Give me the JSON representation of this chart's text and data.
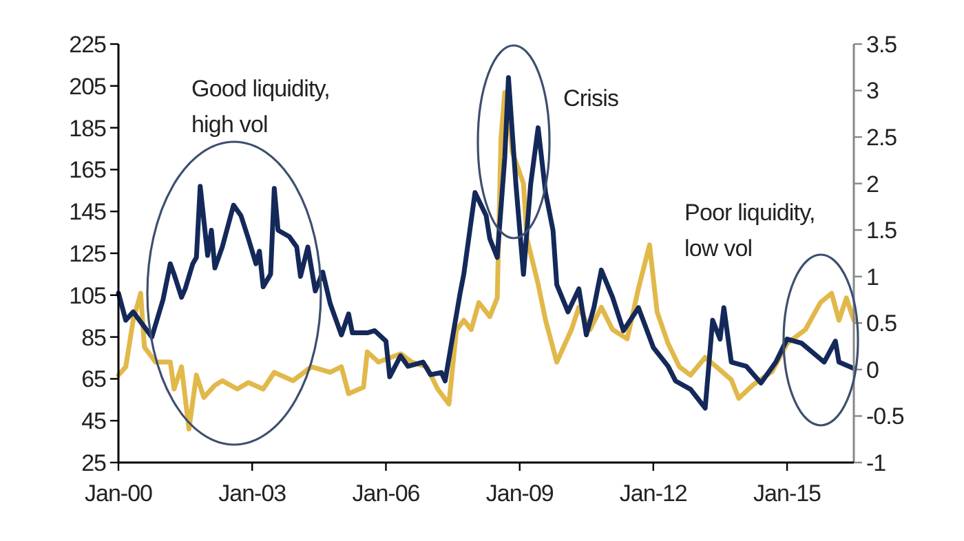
{
  "chart_data": {
    "type": "line",
    "xlim": [
      "2000-01",
      "2016-07"
    ],
    "xticks": [
      {
        "value": "2000-01",
        "label": "Jan-00"
      },
      {
        "value": "2003-01",
        "label": "Jan-03"
      },
      {
        "value": "2006-01",
        "label": "Jan-06"
      },
      {
        "value": "2009-01",
        "label": "Jan-09"
      },
      {
        "value": "2012-01",
        "label": "Jan-12"
      },
      {
        "value": "2015-01",
        "label": "Jan-15"
      }
    ],
    "ylim": [
      25,
      225
    ],
    "yticks": [
      25,
      45,
      65,
      85,
      105,
      125,
      145,
      165,
      185,
      205,
      225
    ],
    "y2lim": [
      -1,
      3.5
    ],
    "y2ticks": [
      -1,
      -0.5,
      0,
      0.5,
      1,
      1.5,
      2,
      2.5,
      3,
      3.5
    ],
    "grid": false,
    "annotations": [
      "Good liquidity,\nhigh vol",
      "Crisis",
      "Poor liquidity,\nlow vol"
    ],
    "series": [
      {
        "color": "#14295a",
        "x": [
          "2000-01",
          "2000-03",
          "2000-05",
          "2000-10",
          "2001-01",
          "2001-03",
          "2001-04",
          "2001-06",
          "2001-07",
          "2001-09",
          "2001-10",
          "2001-11",
          "2002-01",
          "2002-02",
          "2002-03",
          "2002-05",
          "2002-08",
          "2002-10",
          "2002-12",
          "2003-02",
          "2003-03",
          "2003-04",
          "2003-06",
          "2003-07",
          "2003-08",
          "2003-11",
          "2004-01",
          "2004-02",
          "2004-04",
          "2004-06",
          "2004-08",
          "2004-10",
          "2005-01",
          "2005-03",
          "2005-04",
          "2005-08",
          "2005-10",
          "2006-01",
          "2006-02",
          "2006-05",
          "2006-07",
          "2006-11",
          "2007-01",
          "2007-04",
          "2007-05",
          "2007-07",
          "2007-09",
          "2007-10",
          "2008-01",
          "2008-04",
          "2008-05",
          "2008-07",
          "2008-09",
          "2008-10",
          "2008-12",
          "2009-02",
          "2009-04",
          "2009-06",
          "2009-08",
          "2009-10",
          "2009-11",
          "2010-02",
          "2010-05",
          "2010-07",
          "2010-09",
          "2010-11",
          "2011-02",
          "2011-05",
          "2011-09",
          "2012-01",
          "2012-05",
          "2012-07",
          "2012-11",
          "2013-03",
          "2013-05",
          "2013-07",
          "2013-08",
          "2013-10",
          "2014-02",
          "2014-06",
          "2014-10",
          "2015-01",
          "2015-05",
          "2015-11",
          "2016-02",
          "2016-03",
          "2016-07"
        ],
        "values": [
          106,
          93,
          97,
          85,
          103,
          120,
          115,
          104,
          108,
          120,
          123,
          157,
          124,
          136,
          118,
          128,
          148,
          143,
          132,
          120,
          126,
          109,
          115,
          156,
          136,
          133,
          128,
          114,
          128,
          107,
          116,
          101,
          86,
          96,
          87,
          87,
          88,
          83,
          66,
          76,
          71,
          73,
          67,
          68,
          64,
          85,
          106,
          115,
          154,
          143,
          132,
          123,
          171,
          209,
          158,
          115,
          158,
          185,
          154,
          136,
          110,
          97,
          108,
          86,
          99,
          117,
          104,
          88,
          99,
          80,
          71,
          64,
          60,
          51,
          93,
          84,
          99,
          73,
          71,
          63,
          73,
          84,
          82,
          73,
          83,
          73,
          70
        ]
      },
      {
        "color": "#e1b84a",
        "axis": "y2",
        "x": [
          "2000-01",
          "2000-03",
          "2000-05",
          "2000-07",
          "2000-08",
          "2000-11",
          "2001-03",
          "2001-04",
          "2001-06",
          "2001-08",
          "2001-10",
          "2001-12",
          "2002-03",
          "2002-05",
          "2002-09",
          "2002-12",
          "2003-04",
          "2003-07",
          "2003-12",
          "2004-05",
          "2004-10",
          "2005-01",
          "2005-03",
          "2005-07",
          "2005-08",
          "2005-11",
          "2006-05",
          "2006-08",
          "2006-12",
          "2007-03",
          "2007-06",
          "2007-08",
          "2007-10",
          "2007-12",
          "2008-02",
          "2008-05",
          "2008-07",
          "2008-08",
          "2008-09",
          "2008-10",
          "2008-11",
          "2009-02",
          "2009-03",
          "2009-06",
          "2009-08",
          "2009-11",
          "2010-03",
          "2010-05",
          "2010-08",
          "2010-11",
          "2011-02",
          "2011-06",
          "2011-09",
          "2011-12",
          "2012-02",
          "2012-05",
          "2012-08",
          "2012-11",
          "2013-03",
          "2013-06",
          "2013-10",
          "2013-12",
          "2014-04",
          "2014-09",
          "2015-01",
          "2015-06",
          "2015-10",
          "2016-01",
          "2016-03",
          "2016-05",
          "2016-07"
        ],
        "values": [
          -0.06,
          0.03,
          0.53,
          0.82,
          0.24,
          0.08,
          0.08,
          -0.21,
          0.03,
          -0.64,
          -0.06,
          -0.3,
          -0.17,
          -0.12,
          -0.21,
          -0.14,
          -0.21,
          -0.03,
          -0.12,
          0.03,
          -0.03,
          0.03,
          -0.26,
          -0.19,
          0.19,
          0.08,
          0.17,
          0.08,
          0.03,
          -0.21,
          -0.37,
          0.42,
          0.53,
          0.43,
          0.72,
          0.57,
          0.77,
          2.49,
          2.98,
          2.84,
          2.34,
          2.0,
          1.41,
          0.92,
          0.53,
          0.08,
          0.43,
          0.67,
          0.43,
          0.67,
          0.43,
          0.33,
          0.87,
          1.34,
          0.62,
          0.28,
          0.03,
          -0.06,
          0.13,
          0.03,
          -0.11,
          -0.31,
          -0.16,
          -0.02,
          0.28,
          0.43,
          0.72,
          0.82,
          0.53,
          0.77,
          0.53
        ]
      }
    ]
  }
}
